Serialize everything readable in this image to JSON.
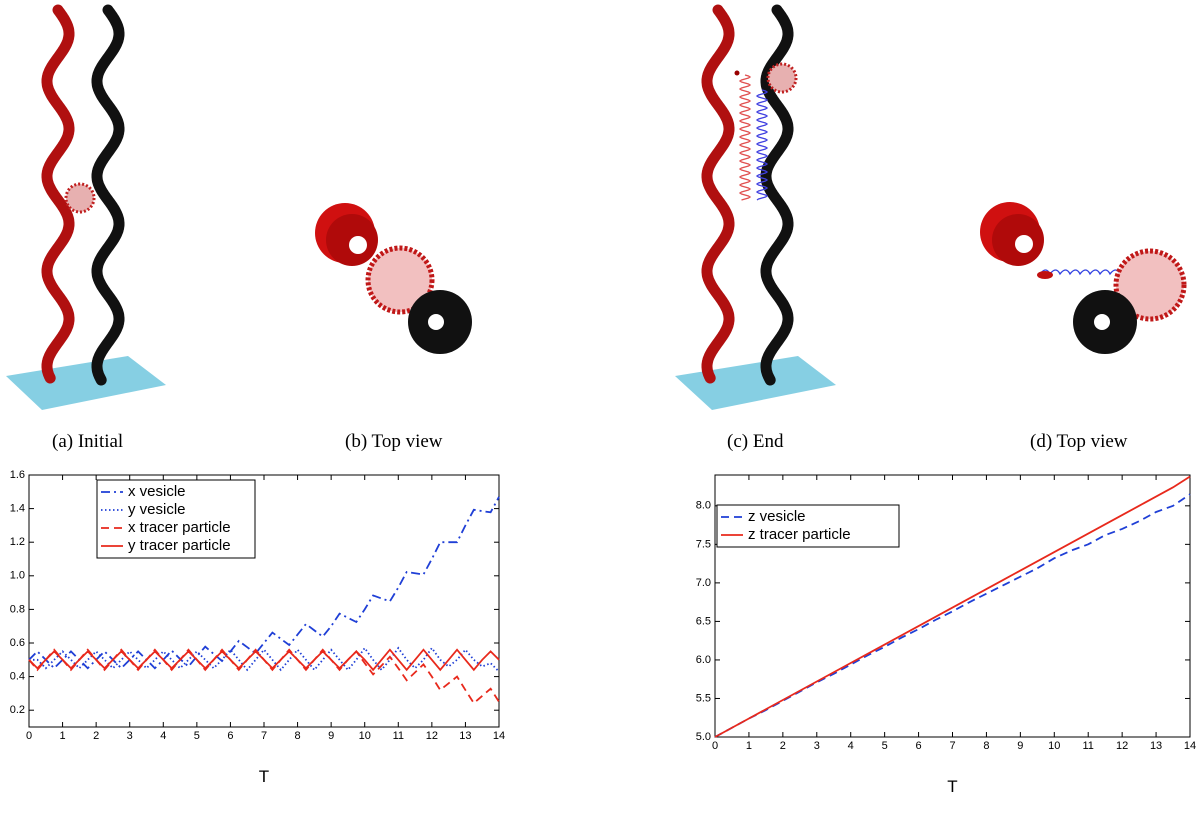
{
  "captions": [
    "(a) Initial",
    "(b) Top view",
    "(c) End",
    "(d) Top view"
  ],
  "chart_data": [
    {
      "type": "line",
      "xlabel": "T",
      "x": [
        0,
        0.25,
        0.5,
        0.75,
        1,
        1.25,
        1.5,
        1.75,
        2,
        2.25,
        2.5,
        2.75,
        3,
        3.25,
        3.5,
        3.75,
        4,
        4.25,
        4.5,
        4.75,
        5,
        5.25,
        5.5,
        5.75,
        6,
        6.25,
        6.5,
        6.75,
        7,
        7.25,
        7.5,
        7.75,
        8,
        8.25,
        8.5,
        8.75,
        9,
        9.25,
        9.5,
        9.75,
        10,
        10.25,
        10.5,
        10.75,
        11,
        11.25,
        11.5,
        11.75,
        12,
        12.25,
        12.5,
        12.75,
        13,
        13.25,
        13.5,
        13.75,
        14
      ],
      "xlim": [
        0,
        14
      ],
      "xticks": [
        0,
        1,
        2,
        3,
        4,
        5,
        6,
        7,
        8,
        9,
        10,
        11,
        12,
        13,
        14
      ],
      "ylim": [
        0.1,
        1.6
      ],
      "yticks": [
        0.2,
        0.4,
        0.6,
        0.8,
        {
          "value": 1,
          "label": "1.0"
        },
        1.2,
        1.4,
        1.6
      ],
      "legend": "upper-left",
      "series": [
        {
          "name": "x vesicle",
          "color": "#1f3fd6",
          "style": "dashdot",
          "values": [
            0.5,
            0.55,
            0.5,
            0.45,
            0.5,
            0.55,
            0.5,
            0.45,
            0.5,
            0.55,
            0.5,
            0.45,
            0.5,
            0.55,
            0.5,
            0.45,
            0.5,
            0.555,
            0.505,
            0.46,
            0.52,
            0.578,
            0.535,
            0.493,
            0.55,
            0.612,
            0.575,
            0.538,
            0.6,
            0.662,
            0.625,
            0.588,
            0.65,
            0.713,
            0.675,
            0.638,
            0.7,
            0.775,
            0.75,
            0.725,
            0.8,
            0.883,
            0.865,
            0.848,
            0.93,
            1.023,
            1.015,
            1.008,
            1.1,
            1.2,
            1.2,
            1.2,
            1.3,
            1.393,
            1.385,
            1.378,
            1.47
          ]
        },
        {
          "name": "y vesicle",
          "color": "#1f3fd6",
          "style": "dotted",
          "values": [
            0.5,
            0.5,
            0.45,
            0.5,
            0.55,
            0.5,
            0.45,
            0.5,
            0.55,
            0.5,
            0.45,
            0.5,
            0.55,
            0.5,
            0.45,
            0.5,
            0.55,
            0.5,
            0.45,
            0.5,
            0.55,
            0.5,
            0.45,
            0.5,
            0.56,
            0.5,
            0.44,
            0.5,
            0.56,
            0.5,
            0.44,
            0.5,
            0.56,
            0.5,
            0.44,
            0.5,
            0.56,
            0.5,
            0.44,
            0.5,
            0.57,
            0.5,
            0.44,
            0.5,
            0.57,
            0.5,
            0.45,
            0.5,
            0.57,
            0.5,
            0.46,
            0.5,
            0.56,
            0.5,
            0.46,
            0.48,
            0.43
          ]
        },
        {
          "name": "x tracer particle",
          "color": "#e8291c",
          "style": "dashed",
          "values": [
            0.5,
            0.44,
            0.5,
            0.56,
            0.5,
            0.44,
            0.5,
            0.56,
            0.5,
            0.44,
            0.5,
            0.56,
            0.5,
            0.44,
            0.5,
            0.56,
            0.5,
            0.44,
            0.5,
            0.56,
            0.5,
            0.44,
            0.5,
            0.56,
            0.5,
            0.44,
            0.5,
            0.56,
            0.5,
            0.44,
            0.5,
            0.56,
            0.5,
            0.44,
            0.5,
            0.56,
            0.5,
            0.44,
            0.5,
            0.55,
            0.48,
            0.413,
            0.465,
            0.518,
            0.45,
            0.378,
            0.425,
            0.473,
            0.4,
            0.32,
            0.36,
            0.4,
            0.32,
            0.242,
            0.285,
            0.328,
            0.25
          ]
        },
        {
          "name": "y tracer particle",
          "color": "#e8291c",
          "style": "solid",
          "values": [
            0.5,
            0.45,
            0.5,
            0.55,
            0.5,
            0.45,
            0.5,
            0.55,
            0.5,
            0.45,
            0.5,
            0.55,
            0.5,
            0.45,
            0.5,
            0.55,
            0.5,
            0.45,
            0.5,
            0.55,
            0.5,
            0.45,
            0.5,
            0.55,
            0.5,
            0.45,
            0.5,
            0.55,
            0.5,
            0.45,
            0.5,
            0.55,
            0.5,
            0.45,
            0.5,
            0.55,
            0.5,
            0.45,
            0.5,
            0.55,
            0.5,
            0.44,
            0.5,
            0.56,
            0.5,
            0.44,
            0.5,
            0.56,
            0.5,
            0.44,
            0.5,
            0.56,
            0.5,
            0.44,
            0.5,
            0.55,
            0.5
          ]
        }
      ]
    },
    {
      "type": "line",
      "xlabel": "T",
      "x": [
        0,
        0.5,
        1,
        1.5,
        2,
        2.5,
        3,
        3.5,
        4,
        4.5,
        5,
        5.5,
        6,
        6.5,
        7,
        7.5,
        8,
        8.5,
        9,
        9.5,
        10,
        10.5,
        11,
        11.5,
        12,
        12.5,
        13,
        13.5,
        14
      ],
      "xlim": [
        0,
        14
      ],
      "xticks": [
        0,
        1,
        2,
        3,
        4,
        5,
        6,
        7,
        8,
        9,
        10,
        11,
        12,
        13,
        14
      ],
      "ylim": [
        5.0,
        8.4
      ],
      "yticks": [
        {
          "value": 5,
          "label": "5.0"
        },
        5.5,
        {
          "value": 6,
          "label": "6.0"
        },
        6.5,
        {
          "value": 7,
          "label": "7.0"
        },
        7.5,
        {
          "value": 8,
          "label": "8.0"
        }
      ],
      "legend": "upper-left",
      "series": [
        {
          "name": "z vesicle",
          "color": "#1f3fd6",
          "style": "dashed",
          "values": [
            5.0,
            5.12,
            5.24,
            5.35,
            5.47,
            5.59,
            5.71,
            5.82,
            5.94,
            6.06,
            6.17,
            6.29,
            6.4,
            6.52,
            6.63,
            6.75,
            6.86,
            6.97,
            7.08,
            7.19,
            7.32,
            7.42,
            7.5,
            7.62,
            7.7,
            7.8,
            7.92,
            8.0,
            8.15
          ]
        },
        {
          "name": "z tracer particle",
          "color": "#e8291c",
          "style": "solid",
          "values": [
            5.0,
            5.12,
            5.24,
            5.36,
            5.48,
            5.6,
            5.72,
            5.84,
            5.96,
            6.08,
            6.2,
            6.32,
            6.44,
            6.56,
            6.68,
            6.8,
            6.92,
            7.04,
            7.16,
            7.28,
            7.4,
            7.52,
            7.64,
            7.76,
            7.88,
            8.0,
            8.12,
            8.24,
            8.38
          ]
        }
      ]
    }
  ]
}
